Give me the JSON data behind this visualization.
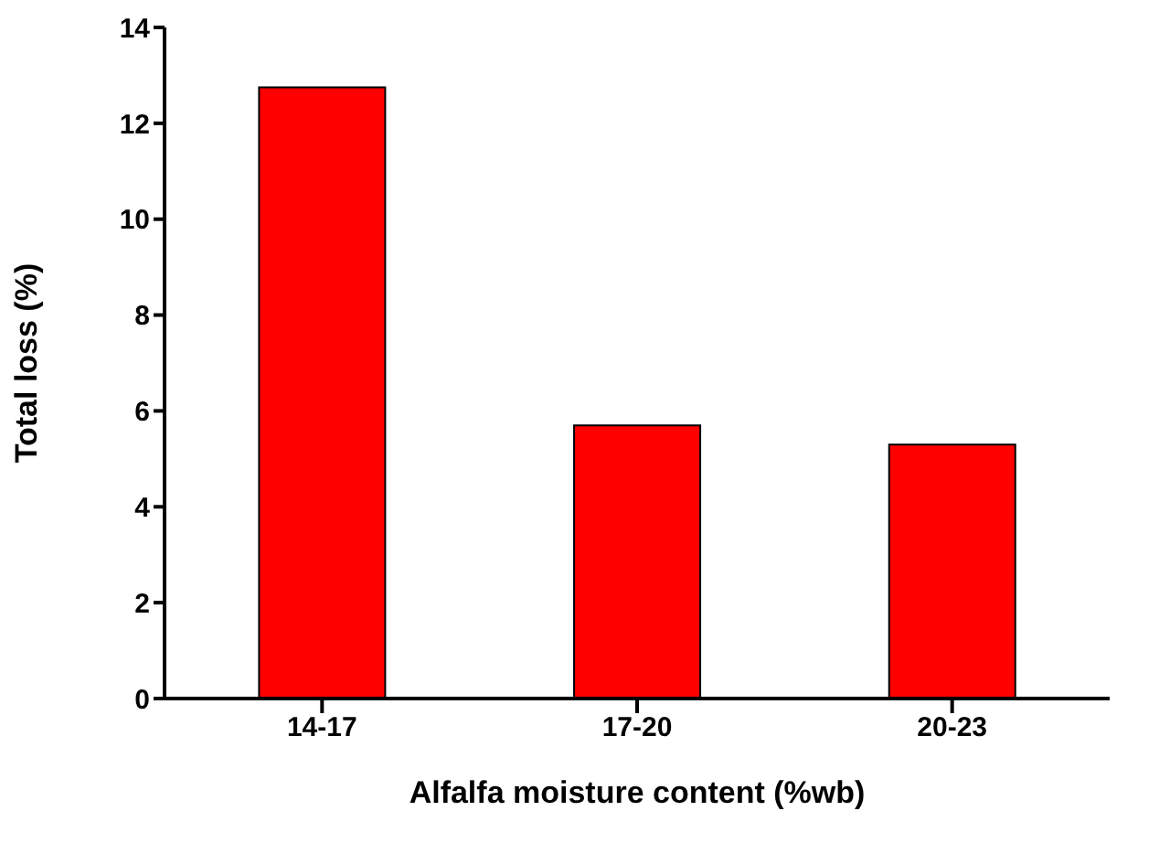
{
  "chart_data": {
    "type": "bar",
    "xlabel": "Alfalfa moisture content (%wb)",
    "ylabel": "Total loss (%)",
    "categories": [
      "14-17",
      "17-20",
      "20-23"
    ],
    "values": [
      12.75,
      5.7,
      5.3
    ],
    "color": "#ff0000",
    "ylim": [
      0,
      14
    ],
    "yticks": [
      0,
      2,
      4,
      6,
      8,
      10,
      12,
      14
    ],
    "grid": false,
    "legend": false
  }
}
